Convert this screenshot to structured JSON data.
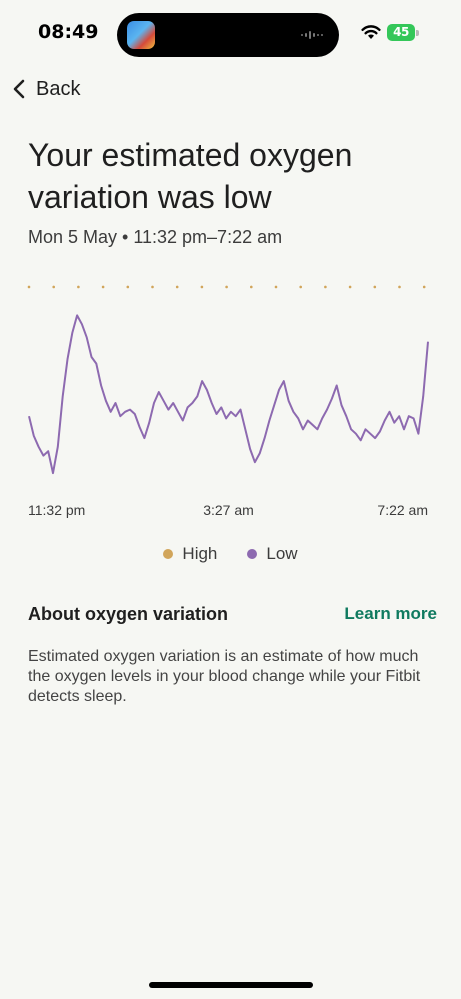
{
  "status_bar": {
    "time": "08:49",
    "battery": "45"
  },
  "nav": {
    "back_label": "Back"
  },
  "header": {
    "title": "Your estimated oxygen variation was low",
    "subtitle": "Mon 5 May • 11:32 pm–7:22 am"
  },
  "colors": {
    "high": "#d1a55a",
    "low": "#8d6ab0",
    "accent": "#0f7a5f"
  },
  "chart_data": {
    "type": "line",
    "x_tick_labels": [
      "11:32 pm",
      "3:27 am",
      "7:22 am"
    ],
    "x_range": [
      "11:32 pm",
      "7:22 am"
    ],
    "ylim": [
      0,
      1
    ],
    "y_scale": "unlabeled relative variation",
    "threshold": {
      "name": "High",
      "style": "dotted",
      "value": 0.95
    },
    "series": [
      {
        "name": "Low",
        "values": [
          0.36,
          0.27,
          0.22,
          0.18,
          0.2,
          0.1,
          0.22,
          0.45,
          0.62,
          0.74,
          0.82,
          0.78,
          0.72,
          0.63,
          0.6,
          0.5,
          0.43,
          0.38,
          0.42,
          0.36,
          0.38,
          0.39,
          0.37,
          0.31,
          0.26,
          0.33,
          0.42,
          0.47,
          0.43,
          0.39,
          0.42,
          0.38,
          0.34,
          0.4,
          0.42,
          0.45,
          0.52,
          0.48,
          0.42,
          0.37,
          0.4,
          0.35,
          0.38,
          0.36,
          0.39,
          0.3,
          0.21,
          0.15,
          0.19,
          0.26,
          0.34,
          0.41,
          0.48,
          0.52,
          0.43,
          0.38,
          0.35,
          0.3,
          0.34,
          0.32,
          0.3,
          0.35,
          0.39,
          0.44,
          0.5,
          0.41,
          0.36,
          0.3,
          0.28,
          0.25,
          0.3,
          0.28,
          0.26,
          0.29,
          0.34,
          0.38,
          0.33,
          0.36,
          0.3,
          0.36,
          0.35,
          0.28,
          0.45,
          0.7
        ]
      }
    ],
    "legend": [
      "High",
      "Low"
    ]
  },
  "about": {
    "title": "About oxygen variation",
    "learn_more": "Learn more",
    "description": "Estimated oxygen variation is an estimate of how much the oxygen levels in your blood change while your Fitbit detects sleep."
  }
}
